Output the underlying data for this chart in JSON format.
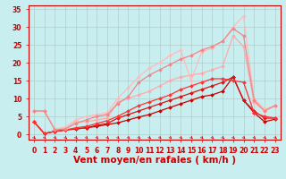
{
  "title": "",
  "xlabel": "Vent moyen/en rafales ( km/h )",
  "bg_color": "#c8eef0",
  "grid_color": "#b0cccc",
  "xlim": [
    -0.5,
    23.5
  ],
  "ylim": [
    -1.5,
    36
  ],
  "xticks": [
    0,
    1,
    2,
    3,
    4,
    5,
    6,
    7,
    8,
    9,
    10,
    11,
    12,
    13,
    14,
    15,
    16,
    17,
    18,
    19,
    20,
    21,
    22,
    23
  ],
  "yticks": [
    0,
    5,
    10,
    15,
    20,
    25,
    30,
    35
  ],
  "lines": [
    {
      "x": [
        0,
        1,
        2,
        3,
        4,
        5,
        6,
        7,
        8,
        9,
        10,
        11,
        12,
        13,
        14,
        15,
        16,
        17,
        18,
        19,
        20,
        21,
        22,
        23
      ],
      "y": [
        3.5,
        0.2,
        0.8,
        1.2,
        1.5,
        1.8,
        2.2,
        2.7,
        3.2,
        4.0,
        4.8,
        5.5,
        6.5,
        7.5,
        8.5,
        9.5,
        10.5,
        11.0,
        12.0,
        16.0,
        9.5,
        6.0,
        3.5,
        4.2
      ],
      "color": "#cc0000",
      "lw": 0.9,
      "marker": "D",
      "ms": 2.0
    },
    {
      "x": [
        0,
        1,
        2,
        3,
        4,
        5,
        6,
        7,
        8,
        9,
        10,
        11,
        12,
        13,
        14,
        15,
        16,
        17,
        18,
        19,
        20,
        21,
        22,
        23
      ],
      "y": [
        3.5,
        0.2,
        0.8,
        1.2,
        1.5,
        1.8,
        2.5,
        3.0,
        4.5,
        5.5,
        6.5,
        7.5,
        8.5,
        9.5,
        10.5,
        11.5,
        12.5,
        13.5,
        14.5,
        16.0,
        9.5,
        6.5,
        4.5,
        4.5
      ],
      "color": "#dd1111",
      "lw": 0.9,
      "marker": "D",
      "ms": 2.0
    },
    {
      "x": [
        0,
        1,
        2,
        3,
        4,
        5,
        6,
        7,
        8,
        9,
        10,
        11,
        12,
        13,
        14,
        15,
        16,
        17,
        18,
        19,
        20,
        21,
        22,
        23
      ],
      "y": [
        3.5,
        0.2,
        0.8,
        1.2,
        1.8,
        2.2,
        3.0,
        3.8,
        5.0,
        6.5,
        8.0,
        9.0,
        10.0,
        11.0,
        12.5,
        13.5,
        14.5,
        15.5,
        15.5,
        15.0,
        14.5,
        6.0,
        5.0,
        4.5
      ],
      "color": "#ff3333",
      "lw": 0.9,
      "marker": "D",
      "ms": 2.0
    },
    {
      "x": [
        0,
        1,
        2,
        3,
        4,
        5,
        6,
        7,
        8,
        9,
        10,
        11,
        12,
        13,
        14,
        15,
        16,
        17,
        18,
        19,
        20,
        21,
        22,
        23
      ],
      "y": [
        6.5,
        6.5,
        1.5,
        1.5,
        3.5,
        3.5,
        4.0,
        4.5,
        9.0,
        10.0,
        11.0,
        12.0,
        13.5,
        15.0,
        16.0,
        16.5,
        17.0,
        18.0,
        19.0,
        27.5,
        24.5,
        9.0,
        6.5,
        8.0
      ],
      "color": "#ffaaaa",
      "lw": 0.9,
      "marker": "D",
      "ms": 2.0
    },
    {
      "x": [
        0,
        1,
        2,
        3,
        4,
        5,
        6,
        7,
        8,
        9,
        10,
        11,
        12,
        13,
        14,
        15,
        16,
        17,
        18,
        19,
        20,
        21,
        22,
        23
      ],
      "y": [
        6.5,
        6.5,
        1.5,
        2.0,
        4.0,
        5.0,
        5.5,
        6.0,
        10.0,
        13.0,
        16.0,
        18.5,
        20.0,
        22.0,
        23.5,
        15.0,
        23.0,
        24.0,
        26.0,
        30.0,
        33.0,
        10.0,
        7.0,
        8.0
      ],
      "color": "#ffbbbb",
      "lw": 0.9,
      "marker": "D",
      "ms": 2.0
    },
    {
      "x": [
        0,
        1,
        2,
        3,
        4,
        5,
        6,
        7,
        8,
        9,
        10,
        11,
        12,
        13,
        14,
        15,
        16,
        17,
        18,
        19,
        20,
        21,
        22,
        23
      ],
      "y": [
        6.5,
        6.5,
        1.2,
        1.5,
        3.0,
        4.0,
        5.0,
        5.5,
        8.5,
        10.5,
        14.5,
        16.5,
        18.0,
        19.5,
        21.0,
        22.0,
        23.5,
        24.5,
        26.0,
        29.5,
        27.5,
        9.5,
        6.5,
        8.0
      ],
      "color": "#ee8888",
      "lw": 0.9,
      "marker": "D",
      "ms": 2.0
    }
  ],
  "xlabel_color": "#cc0000",
  "xlabel_fontsize": 7.5,
  "tick_fontsize": 5.5,
  "tick_color": "#cc0000",
  "arrow_color": "#cc0000"
}
